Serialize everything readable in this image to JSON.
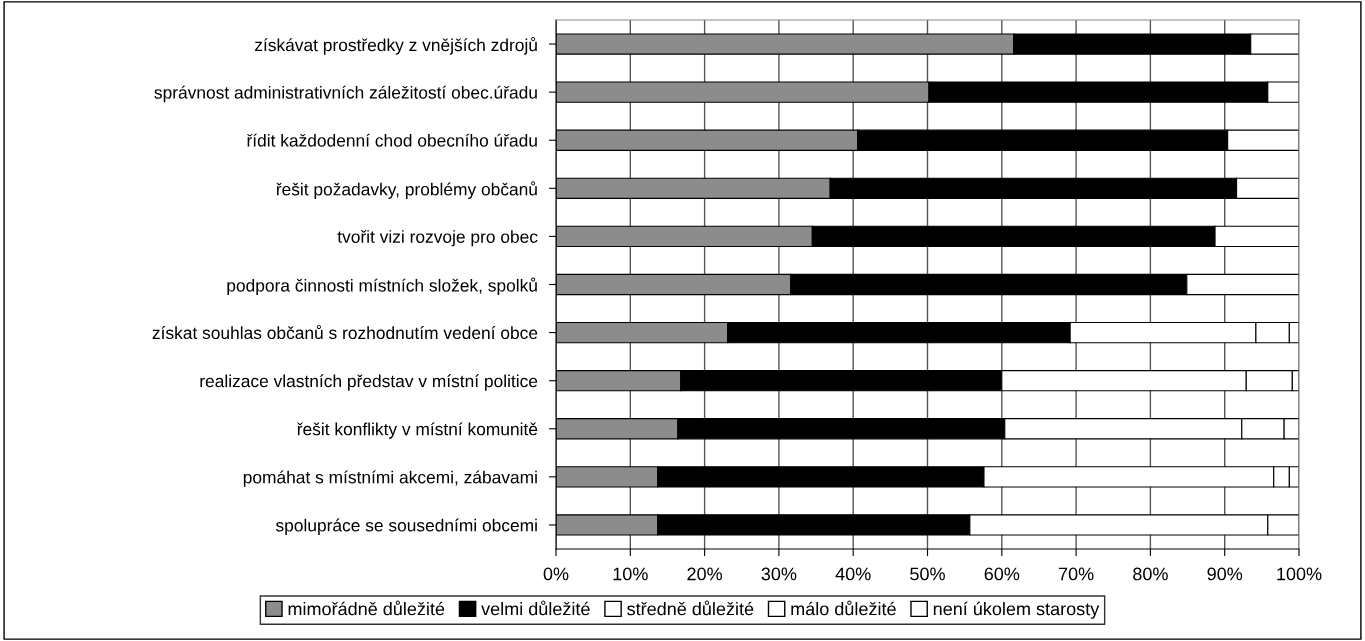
{
  "chart_data": {
    "type": "bar",
    "orientation": "horizontal",
    "stacked": true,
    "categories": [
      "získávat prostředky z vnějších zdrojů",
      "správnost administrativních záležitostí obec.úřadu",
      "řídit každodenní chod obecního úřadu",
      "řešit požadavky, problémy občanů",
      "tvořit vizi rozvoje pro obec",
      "podpora činnosti místních složek, spolků",
      "získat souhlas občanů s rozhodnutím vedení obce",
      "realizace vlastních představ v místní politice",
      "řešit konflikty v místní komunitě",
      "pomáhat s místními akcemi, zábavami",
      "spolupráce se sousedními obcemi"
    ],
    "series": [
      {
        "name": "mimořádně důležité",
        "color": "#8c8c8c",
        "values": [
          61.6,
          50.2,
          40.6,
          36.9,
          34.5,
          31.6,
          23.1,
          16.8,
          16.4,
          13.7,
          13.7
        ]
      },
      {
        "name": "velmi důležité",
        "color": "#000000",
        "values": [
          31.9,
          45.6,
          49.8,
          54.7,
          54.2,
          53.3,
          46.1,
          43.2,
          44.0,
          43.9,
          42.0
        ]
      },
      {
        "name": "středně důležité",
        "color": "#ffffff",
        "values": [
          6.5,
          4.2,
          9.6,
          8.4,
          11.3,
          15.1,
          25.0,
          32.9,
          31.9,
          39.0,
          40.1
        ]
      },
      {
        "name": "málo důležité",
        "color": "#ffffff",
        "values": [
          0,
          0,
          0,
          0,
          0,
          0,
          4.5,
          6.2,
          5.7,
          2.1,
          4.2
        ]
      },
      {
        "name": "není úkolem starosty",
        "color": "#ffffff",
        "values": [
          0,
          0,
          0,
          0,
          0,
          0,
          1.3,
          0.9,
          2.0,
          1.3,
          0
        ]
      }
    ],
    "xlim": [
      0,
      100
    ],
    "xticks": [
      {
        "value": 0,
        "label": "0%"
      },
      {
        "value": 10,
        "label": "10%"
      },
      {
        "value": 20,
        "label": "20%"
      },
      {
        "value": 30,
        "label": "30%"
      },
      {
        "value": 40,
        "label": "40%"
      },
      {
        "value": 50,
        "label": "50%"
      },
      {
        "value": 60,
        "label": "60%"
      },
      {
        "value": 70,
        "label": "70%"
      },
      {
        "value": 80,
        "label": "80%"
      },
      {
        "value": 90,
        "label": "90%"
      },
      {
        "value": 100,
        "label": "100%"
      }
    ],
    "grid": "x",
    "legend": "bottom"
  }
}
